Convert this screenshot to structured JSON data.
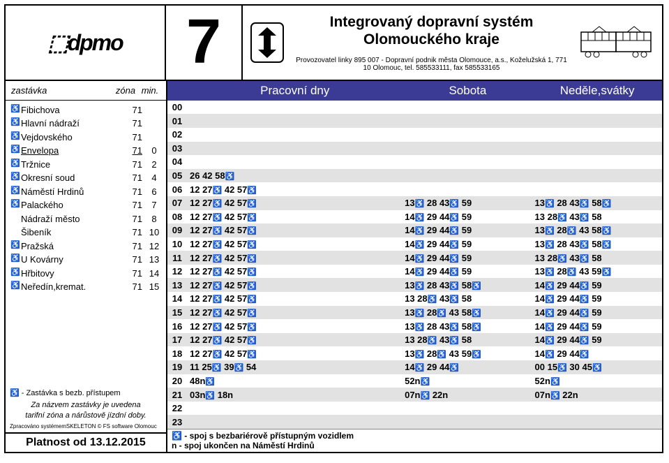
{
  "header": {
    "logo_text": "⬚dpmo",
    "line_number": "7",
    "system_title_l1": "Integrovaný dopravní systém",
    "system_title_l2": "Olomouckého kraje",
    "operator": "Provozovatel linky 895 007 - Dopravní podnik města Olomouce, a.s., Koželužská 1, 771 10 Olomouc, tel. 585533111, fax 585533165"
  },
  "left": {
    "h_stop": "zastávka",
    "h_zone": "zóna",
    "h_min": "min.",
    "stops": [
      {
        "wc": "♿",
        "name": "Fibichova",
        "zone": "71",
        "min": ""
      },
      {
        "wc": "♿",
        "name": "Hlavní nádraží",
        "zone": "71",
        "min": ""
      },
      {
        "wc": "♿",
        "name": "Vejdovského",
        "zone": "71",
        "min": ""
      },
      {
        "wc": "♿",
        "name": "Envelopa",
        "zone": "71",
        "min": "0",
        "current": true
      },
      {
        "wc": "♿",
        "name": "Tržnice",
        "zone": "71",
        "min": "2"
      },
      {
        "wc": "♿",
        "name": "Okresní soud",
        "zone": "71",
        "min": "4"
      },
      {
        "wc": "♿",
        "name": "Náměstí Hrdinů",
        "zone": "71",
        "min": "6"
      },
      {
        "wc": "♿",
        "name": "Palackého",
        "zone": "71",
        "min": "7"
      },
      {
        "wc": "",
        "name": "Nádraží město",
        "zone": "71",
        "min": "8"
      },
      {
        "wc": "",
        "name": "Šibeník",
        "zone": "71",
        "min": "10"
      },
      {
        "wc": "♿",
        "name": "Pražská",
        "zone": "71",
        "min": "12"
      },
      {
        "wc": "♿",
        "name": "U Kovárny",
        "zone": "71",
        "min": "13"
      },
      {
        "wc": "♿",
        "name": "Hřbitovy",
        "zone": "71",
        "min": "14"
      },
      {
        "wc": "♿",
        "name": "Neředín,kremat.",
        "zone": "71",
        "min": "15"
      }
    ],
    "note_access": "♿ - Zastávka s bezb. přístupem",
    "note_tarif_l1": "Za názvem zastávky je uvedena",
    "note_tarif_l2": "tarifní zóna a nárůstově jízdní doby.",
    "note_sw": "Zpracováno systémemSKELETON © FS software Olomouc",
    "validity": "Platnost od 13.12.2015"
  },
  "days": {
    "work": "Pracovní dny",
    "sat": "Sobota",
    "sun": "Neděle,svátky"
  },
  "schedule": [
    {
      "h": "00",
      "work": "",
      "sat": "",
      "sun": "",
      "blank": true
    },
    {
      "h": "01",
      "work": "",
      "sat": "",
      "sun": "",
      "blank": true
    },
    {
      "h": "02",
      "work": "",
      "sat": "",
      "sun": "",
      "blank": true
    },
    {
      "h": "03",
      "work": "",
      "sat": "",
      "sun": "",
      "blank": true
    },
    {
      "h": "04",
      "work": "",
      "sat": "",
      "sun": "",
      "blank": true
    },
    {
      "h": "05",
      "work": "26 42 58♿",
      "sat": "",
      "sun": ""
    },
    {
      "h": "06",
      "work": "12 27♿ 42 57♿",
      "sat": "",
      "sun": ""
    },
    {
      "h": "07",
      "work": "12 27♿ 42 57♿",
      "sat": "13♿ 28 43♿ 59",
      "sun": "13♿ 28 43♿ 58♿"
    },
    {
      "h": "08",
      "work": "12 27♿ 42 57♿",
      "sat": "14♿ 29 44♿ 59",
      "sun": "13 28♿ 43♿ 58"
    },
    {
      "h": "09",
      "work": "12 27♿ 42 57♿",
      "sat": "14♿ 29 44♿ 59",
      "sun": "13♿ 28♿ 43 58♿"
    },
    {
      "h": "10",
      "work": "12 27♿ 42 57♿",
      "sat": "14♿ 29 44♿ 59",
      "sun": "13♿ 28 43♿ 58♿"
    },
    {
      "h": "11",
      "work": "12 27♿ 42 57♿",
      "sat": "14♿ 29 44♿ 59",
      "sun": "13 28♿ 43♿ 58"
    },
    {
      "h": "12",
      "work": "12 27♿ 42 57♿",
      "sat": "14♿ 29 44♿ 59",
      "sun": "13♿ 28♿ 43 59♿"
    },
    {
      "h": "13",
      "work": "12 27♿ 42 57♿",
      "sat": "13♿ 28 43♿ 58♿",
      "sun": "14♿ 29 44♿ 59"
    },
    {
      "h": "14",
      "work": "12 27♿ 42 57♿",
      "sat": "13 28♿ 43♿ 58",
      "sun": "14♿ 29 44♿ 59"
    },
    {
      "h": "15",
      "work": "12 27♿ 42 57♿",
      "sat": "13♿ 28♿ 43 58♿",
      "sun": "14♿ 29 44♿ 59"
    },
    {
      "h": "16",
      "work": "12 27♿ 42 57♿",
      "sat": "13♿ 28 43♿ 58♿",
      "sun": "14♿ 29 44♿ 59"
    },
    {
      "h": "17",
      "work": "12 27♿ 42 57♿",
      "sat": "13 28♿ 43♿ 58",
      "sun": "14♿ 29 44♿ 59"
    },
    {
      "h": "18",
      "work": "12 27♿ 42 57♿",
      "sat": "13♿ 28♿ 43 59♿",
      "sun": "14♿ 29 44♿"
    },
    {
      "h": "19",
      "work": "11 25♿ 39♿ 54",
      "sat": "14♿ 29 44♿",
      "sun": "00 15♿ 30 45♿"
    },
    {
      "h": "20",
      "work": "48n♿",
      "sat": "52n♿",
      "sun": "52n♿"
    },
    {
      "h": "21",
      "work": "03n♿ 18n",
      "sat": "07n♿ 22n",
      "sun": "07n♿ 22n"
    },
    {
      "h": "22",
      "work": "",
      "sat": "",
      "sun": ""
    },
    {
      "h": "23",
      "work": "",
      "sat": "",
      "sun": ""
    }
  ],
  "footer": {
    "wc_note": "♿ - spoj s bezbariérově přístupným vozidlem",
    "n_note": "n - spoj ukončen na Náměstí Hrdinů"
  },
  "colors": {
    "header_bg": "#3b3b95",
    "row_odd": "#e2e2e2"
  }
}
